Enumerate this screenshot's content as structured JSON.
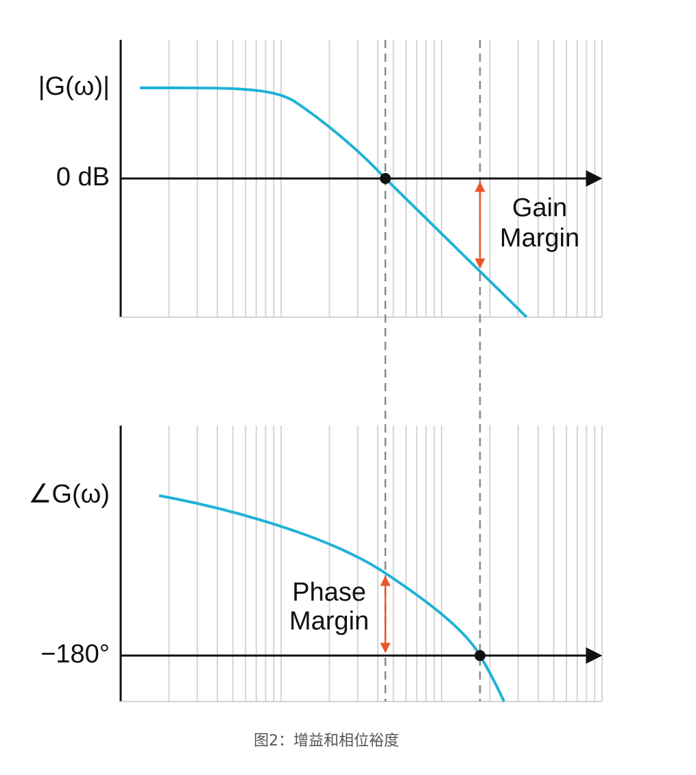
{
  "magnitude_plot": {
    "axis_label": "|G(ω)|",
    "reference_label": "0 dB",
    "margin_label": [
      "Gain",
      "Margin"
    ]
  },
  "phase_plot": {
    "axis_label": "∠G(ω)",
    "reference_label": "−180°",
    "margin_label": [
      "Phase",
      "Margin"
    ]
  },
  "caption": "图2：增益和相位裕度"
}
